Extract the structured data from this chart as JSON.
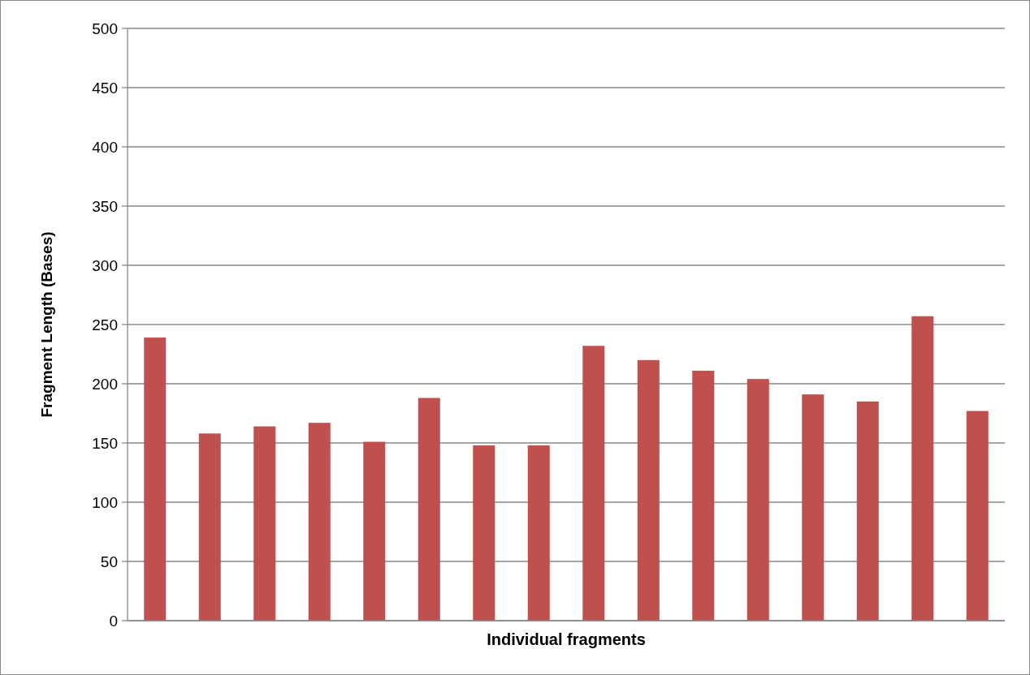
{
  "chart_data": {
    "type": "bar",
    "xlabel": "Individual fragments",
    "ylabel": "Fragment Length (Bases)",
    "categories": [
      null,
      null,
      null,
      null,
      null,
      null,
      null,
      null,
      null,
      null,
      null,
      null,
      null,
      null,
      null,
      null
    ],
    "values": [
      239,
      158,
      164,
      167,
      151,
      188,
      148,
      148,
      232,
      220,
      211,
      204,
      191,
      185,
      257,
      177
    ],
    "color": "#c0504d",
    "ylim": [
      0,
      500
    ],
    "yticks": [
      0,
      50,
      100,
      150,
      200,
      250,
      300,
      350,
      400,
      450,
      500
    ],
    "grid": "y"
  }
}
